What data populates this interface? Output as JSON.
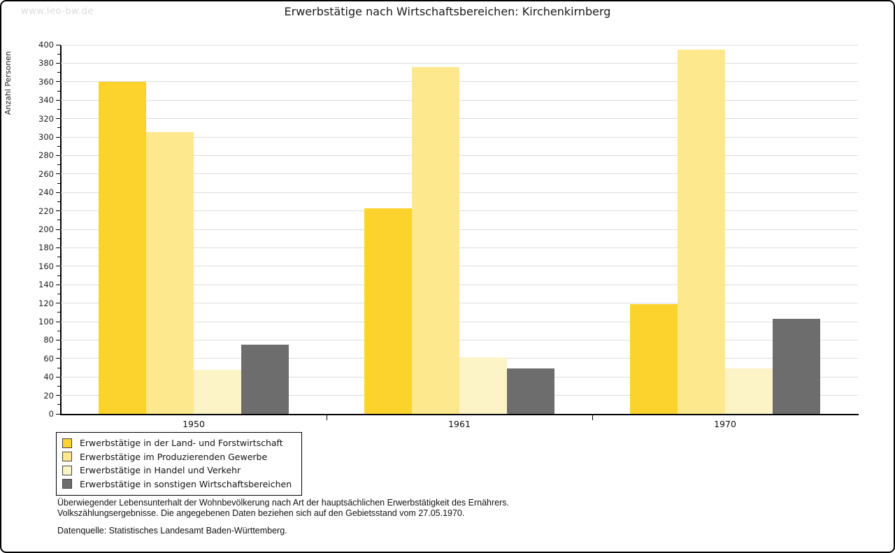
{
  "watermark": "www.leo-bw.de",
  "title": "Erwerbstätige nach Wirtschaftsbereichen: Kirchenkirnberg",
  "chart_data": {
    "type": "bar",
    "title": "Erwerbstätige nach Wirtschaftsbereichen: Kirchenkirnberg",
    "xlabel": "",
    "ylabel": "Anzahl Personen",
    "ylim": [
      0,
      400
    ],
    "ytick_step": 20,
    "minor_tick_step": 10,
    "grid": true,
    "legend_position": "bottom-left",
    "categories": [
      "1950",
      "1961",
      "1970"
    ],
    "series": [
      {
        "name": "Erwerbstätige in der Land- und Forstwirtschaft",
        "color": "#FCD22D",
        "values": [
          360,
          223,
          119
        ]
      },
      {
        "name": "Erwerbstätige im Produzierenden Gewerbe",
        "color": "#FDE88D",
        "values": [
          305,
          376,
          395
        ]
      },
      {
        "name": "Erwerbstätige in Handel und Verkehr",
        "color": "#FCF4C7",
        "values": [
          48,
          61,
          49
        ]
      },
      {
        "name": "Erwerbstätige in sonstigen Wirtschaftsbereichen",
        "color": "#6D6D6D",
        "values": [
          75,
          49,
          103
        ]
      }
    ]
  },
  "footer": {
    "note_line1": "Überwiegender Lebensunterhalt der Wohnbevölkerung nach Art der hauptsächlichen Erwerbstätigkeit des Ernährers.",
    "note_line2": "Volkszählungsergebnisse. Die angegebenen Daten beziehen sich auf den Gebietsstand vom 27.05.1970.",
    "source": "Datenquelle: Statistisches Landesamt Baden-Württemberg."
  },
  "colors": {
    "grid": "#DDDDDD",
    "axis": "#000000",
    "watermark": "#DCDCDC",
    "frame_border": "#000000"
  }
}
